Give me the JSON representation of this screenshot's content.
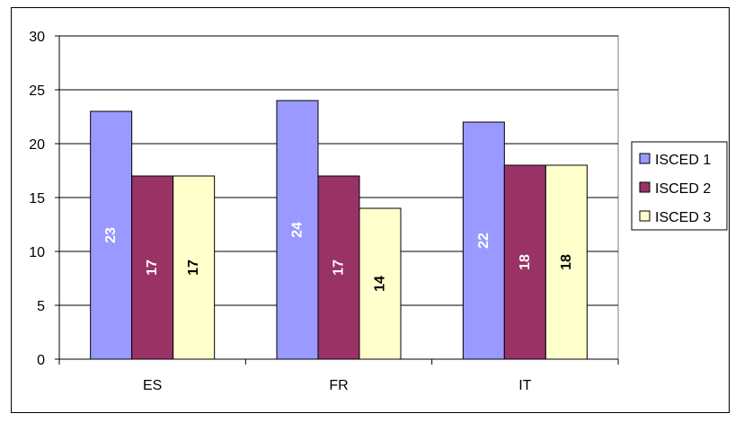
{
  "chart_data": {
    "type": "bar",
    "title": "",
    "xlabel": "",
    "ylabel": "",
    "categories": [
      "ES",
      "FR",
      "IT"
    ],
    "series": [
      {
        "name": "ISCED 1",
        "values": [
          23,
          24,
          22
        ],
        "color": "#9999FF",
        "label_color": "#FFFFFF"
      },
      {
        "name": "ISCED 2",
        "values": [
          17,
          17,
          18
        ],
        "color": "#993366",
        "label_color": "#FFFFFF"
      },
      {
        "name": "ISCED 3",
        "values": [
          17,
          14,
          18
        ],
        "color": "#FFFFCC",
        "label_color": "#000000"
      }
    ],
    "ylim": [
      0,
      30
    ],
    "yticks": [
      "0",
      "5",
      "10",
      "15",
      "20",
      "25",
      "30"
    ],
    "grid": true,
    "legend_position": "right",
    "data_labels": true,
    "data_label_orientation": "vertical"
  }
}
